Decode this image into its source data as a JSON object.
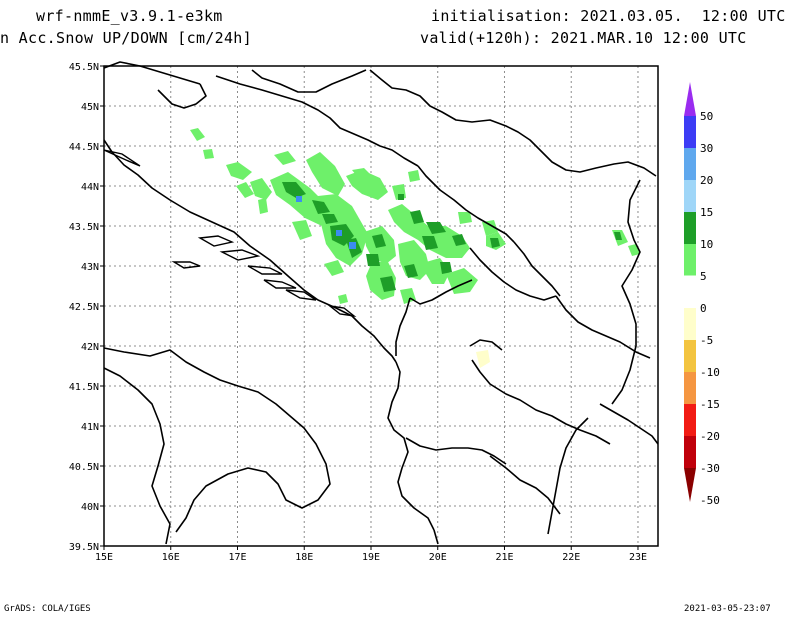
{
  "header": {
    "model": "wrf-nmmE_v3.9.1-e3km",
    "field": "n Acc.Snow UP/DOWN [cm/24h]",
    "init": "initialisation: 2021.03.05.  12:00 UTC",
    "valid": "valid(+120h): 2021.MAR.10 12:00 UTC"
  },
  "footer": {
    "credit": "GrADS: COLA/IGES",
    "timestamp": "2021-03-05-23:07"
  },
  "map": {
    "lon_range": [
      15,
      23.3
    ],
    "lat_range": [
      39.5,
      45.5
    ],
    "lon_ticks": [
      "15E",
      "16E",
      "17E",
      "18E",
      "19E",
      "20E",
      "21E",
      "22E",
      "23E"
    ],
    "lat_ticks": [
      "45.5N",
      "45N",
      "44.5N",
      "44N",
      "43.5N",
      "43N",
      "42.5N",
      "42N",
      "41.5N",
      "41N",
      "40.5N",
      "40N",
      "39.5N"
    ],
    "grid": true,
    "colorbar": {
      "levels": [
        "50",
        "30",
        "20",
        "15",
        "10",
        "5",
        "0",
        "-5",
        "-10",
        "-15",
        "-20",
        "-30",
        "-50"
      ],
      "colors": [
        "#9a2cf0",
        "#3c3cf5",
        "#5fa8ee",
        "#9fd6f8",
        "#1e9e28",
        "#6ef06a",
        "#ffffff",
        "#fffecb",
        "#f3c43f",
        "#f59641",
        "#f21b14",
        "#c0000b",
        "#8a0000"
      ]
    }
  }
}
